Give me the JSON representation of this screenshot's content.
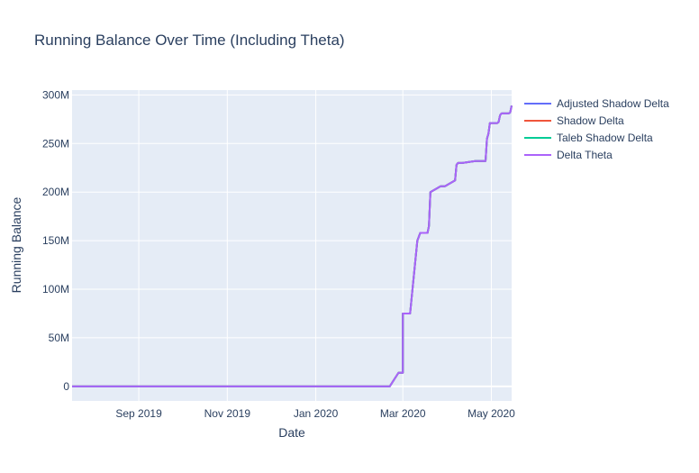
{
  "chart_data": {
    "type": "line",
    "title": "Running Balance Over Time (Including Theta)",
    "xlabel": "Date",
    "ylabel": "Running Balance",
    "x_ticks": [
      {
        "label": "Sep 2019",
        "date": "2019-09-01"
      },
      {
        "label": "Nov 2019",
        "date": "2019-11-01"
      },
      {
        "label": "Jan 2020",
        "date": "2020-01-01"
      },
      {
        "label": "Mar 2020",
        "date": "2020-03-01"
      },
      {
        "label": "May 2020",
        "date": "2020-05-01"
      }
    ],
    "y_ticks": [
      {
        "label": "0",
        "value": 0
      },
      {
        "label": "50M",
        "value": 50000000
      },
      {
        "label": "100M",
        "value": 100000000
      },
      {
        "label": "150M",
        "value": 150000000
      },
      {
        "label": "200M",
        "value": 200000000
      },
      {
        "label": "250M",
        "value": 250000000
      },
      {
        "label": "300M",
        "value": 300000000
      }
    ],
    "xlim": [
      "2019-07-17",
      "2020-05-15"
    ],
    "ylim": [
      -15000000,
      305000000
    ],
    "grid": true,
    "legend_position": "top-right",
    "series": [
      {
        "name": "Adjusted Shadow Delta",
        "color": "#636efa",
        "x": [
          "2019-07-17",
          "2020-02-21",
          "2020-02-27",
          "2020-03-01",
          "2020-03-01",
          "2020-03-06",
          "2020-03-07",
          "2020-03-11",
          "2020-03-13",
          "2020-03-18",
          "2020-03-19",
          "2020-03-20",
          "2020-03-27",
          "2020-03-29",
          "2020-03-30",
          "2020-04-06",
          "2020-04-07",
          "2020-04-08",
          "2020-04-09",
          "2020-04-11",
          "2020-04-20",
          "2020-04-22",
          "2020-04-27",
          "2020-04-28",
          "2020-04-29",
          "2020-04-30",
          "2020-05-05",
          "2020-05-06",
          "2020-05-07",
          "2020-05-08",
          "2020-05-13",
          "2020-05-14",
          "2020-05-15"
        ],
        "y": [
          0,
          0,
          14000000,
          14000000,
          75000000,
          75000000,
          90000000,
          150000000,
          158000000,
          158000000,
          165000000,
          200000000,
          206000000,
          206000000,
          206000000,
          212000000,
          228000000,
          230000000,
          230000000,
          230000000,
          232000000,
          232000000,
          232000000,
          255000000,
          260000000,
          271000000,
          271000000,
          272000000,
          279000000,
          281000000,
          281000000,
          282000000,
          289000000
        ]
      },
      {
        "name": "Shadow Delta",
        "color": "#ef553b",
        "x": [
          "2019-07-17",
          "2020-02-21",
          "2020-02-27",
          "2020-03-01",
          "2020-03-01",
          "2020-03-06",
          "2020-03-07",
          "2020-03-11",
          "2020-03-13",
          "2020-03-18",
          "2020-03-19",
          "2020-03-20",
          "2020-03-27",
          "2020-03-29",
          "2020-03-30",
          "2020-04-06",
          "2020-04-07",
          "2020-04-08",
          "2020-04-09",
          "2020-04-11",
          "2020-04-20",
          "2020-04-22",
          "2020-04-27",
          "2020-04-28",
          "2020-04-29",
          "2020-04-30",
          "2020-05-05",
          "2020-05-06",
          "2020-05-07",
          "2020-05-08",
          "2020-05-13",
          "2020-05-14",
          "2020-05-15"
        ],
        "y": [
          0,
          0,
          14000000,
          14000000,
          75000000,
          75000000,
          90000000,
          150000000,
          158000000,
          158000000,
          165000000,
          200000000,
          206000000,
          206000000,
          206000000,
          212000000,
          228000000,
          230000000,
          230000000,
          230000000,
          232000000,
          232000000,
          232000000,
          255000000,
          260000000,
          271000000,
          271000000,
          272000000,
          279000000,
          281000000,
          281000000,
          282000000,
          289000000
        ]
      },
      {
        "name": "Taleb Shadow Delta",
        "color": "#00cc96",
        "x": [
          "2019-07-17",
          "2020-02-21",
          "2020-02-27",
          "2020-03-01",
          "2020-03-01",
          "2020-03-06",
          "2020-03-07",
          "2020-03-11",
          "2020-03-13",
          "2020-03-18",
          "2020-03-19",
          "2020-03-20",
          "2020-03-27",
          "2020-03-29",
          "2020-03-30",
          "2020-04-06",
          "2020-04-07",
          "2020-04-08",
          "2020-04-09",
          "2020-04-11",
          "2020-04-20",
          "2020-04-22",
          "2020-04-27",
          "2020-04-28",
          "2020-04-29",
          "2020-04-30",
          "2020-05-05",
          "2020-05-06",
          "2020-05-07",
          "2020-05-08",
          "2020-05-13",
          "2020-05-14",
          "2020-05-15"
        ],
        "y": [
          0,
          0,
          14000000,
          14000000,
          75000000,
          75000000,
          90000000,
          150000000,
          158000000,
          158000000,
          165000000,
          200000000,
          206000000,
          206000000,
          206000000,
          212000000,
          228000000,
          230000000,
          230000000,
          230000000,
          232000000,
          232000000,
          232000000,
          255000000,
          260000000,
          271000000,
          271000000,
          272000000,
          279000000,
          281000000,
          281000000,
          282000000,
          289000000
        ]
      },
      {
        "name": "Delta Theta",
        "color": "#ab63fa",
        "x": [
          "2019-07-17",
          "2020-02-21",
          "2020-02-27",
          "2020-03-01",
          "2020-03-01",
          "2020-03-06",
          "2020-03-07",
          "2020-03-11",
          "2020-03-13",
          "2020-03-18",
          "2020-03-19",
          "2020-03-20",
          "2020-03-27",
          "2020-03-29",
          "2020-03-30",
          "2020-04-06",
          "2020-04-07",
          "2020-04-08",
          "2020-04-09",
          "2020-04-11",
          "2020-04-20",
          "2020-04-22",
          "2020-04-27",
          "2020-04-28",
          "2020-04-29",
          "2020-04-30",
          "2020-05-05",
          "2020-05-06",
          "2020-05-07",
          "2020-05-08",
          "2020-05-13",
          "2020-05-14",
          "2020-05-15"
        ],
        "y": [
          0,
          0,
          14000000,
          14000000,
          75000000,
          75000000,
          90000000,
          150000000,
          158000000,
          158000000,
          165000000,
          200000000,
          206000000,
          206000000,
          206000000,
          212000000,
          228000000,
          230000000,
          230000000,
          230000000,
          232000000,
          232000000,
          232000000,
          255000000,
          260000000,
          271000000,
          271000000,
          272000000,
          279000000,
          281000000,
          281000000,
          282000000,
          289000000
        ]
      }
    ]
  }
}
